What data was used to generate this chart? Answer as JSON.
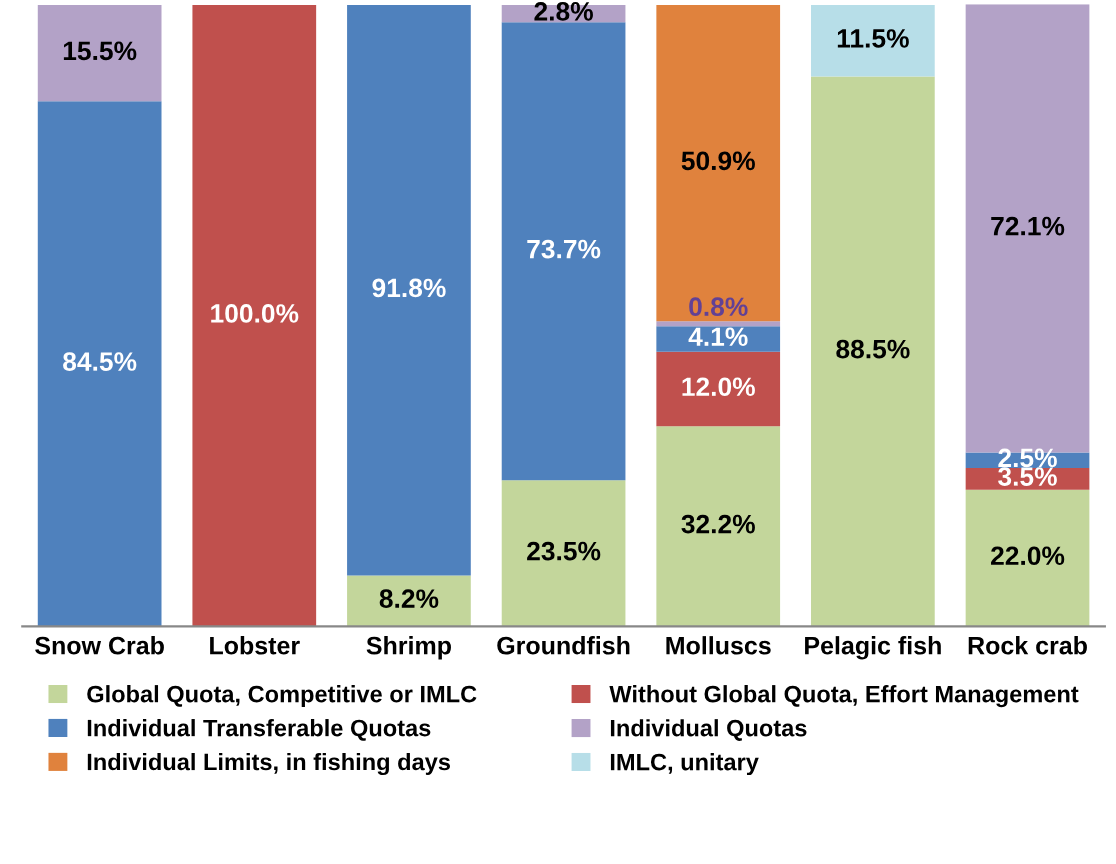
{
  "chart_data": {
    "type": "bar",
    "stacked": true,
    "legend": "bottom",
    "grid": false,
    "categories": [
      "Snow Crab",
      "Lobster",
      "Shrimp",
      "Groundfish",
      "Molluscs",
      "Pelagic fish",
      "Rock crab"
    ],
    "series": [
      {
        "name": "Global Quota, Competitive or IMLC",
        "color": "#c3d69b",
        "values": [
          null,
          null,
          8.2,
          23.5,
          32.2,
          88.5,
          22.0
        ],
        "value_labels": [
          null,
          null,
          "8.2%",
          "23.5%",
          "32.2%",
          "88.5%",
          "22.0%"
        ]
      },
      {
        "name": "Without Global Quota, Effort Management",
        "color": "#c0504d",
        "values": [
          null,
          100.0,
          null,
          null,
          12.0,
          null,
          3.5
        ],
        "value_labels": [
          null,
          "100.0%",
          null,
          null,
          "12.0%",
          null,
          "3.5%"
        ]
      },
      {
        "name": "Individual Transferable Quotas",
        "color": "#4f81bd",
        "values": [
          84.5,
          null,
          91.8,
          73.7,
          4.1,
          null,
          2.5
        ],
        "value_labels": [
          "84.5%",
          null,
          "91.8%",
          "73.7%",
          "4.1%",
          null,
          "2.5%"
        ]
      },
      {
        "name": "Individual Quotas",
        "color": "#b3a2c7",
        "values": [
          15.5,
          null,
          null,
          2.8,
          0.8,
          null,
          72.1
        ],
        "value_labels": [
          "15.5%",
          null,
          null,
          "2.8%",
          "0.8%",
          null,
          "72.1%"
        ]
      },
      {
        "name": "Individual Limits, in fishing days",
        "color": "#e0823d",
        "values": [
          null,
          null,
          null,
          null,
          50.9,
          null,
          null
        ],
        "value_labels": [
          null,
          null,
          null,
          null,
          "50.9%",
          null,
          null
        ]
      },
      {
        "name": "IMLC, unitary",
        "color": "#b7dee8",
        "values": [
          null,
          null,
          null,
          null,
          null,
          11.5,
          null
        ],
        "value_labels": [
          null,
          null,
          null,
          null,
          null,
          "11.5%",
          null
        ]
      }
    ]
  }
}
